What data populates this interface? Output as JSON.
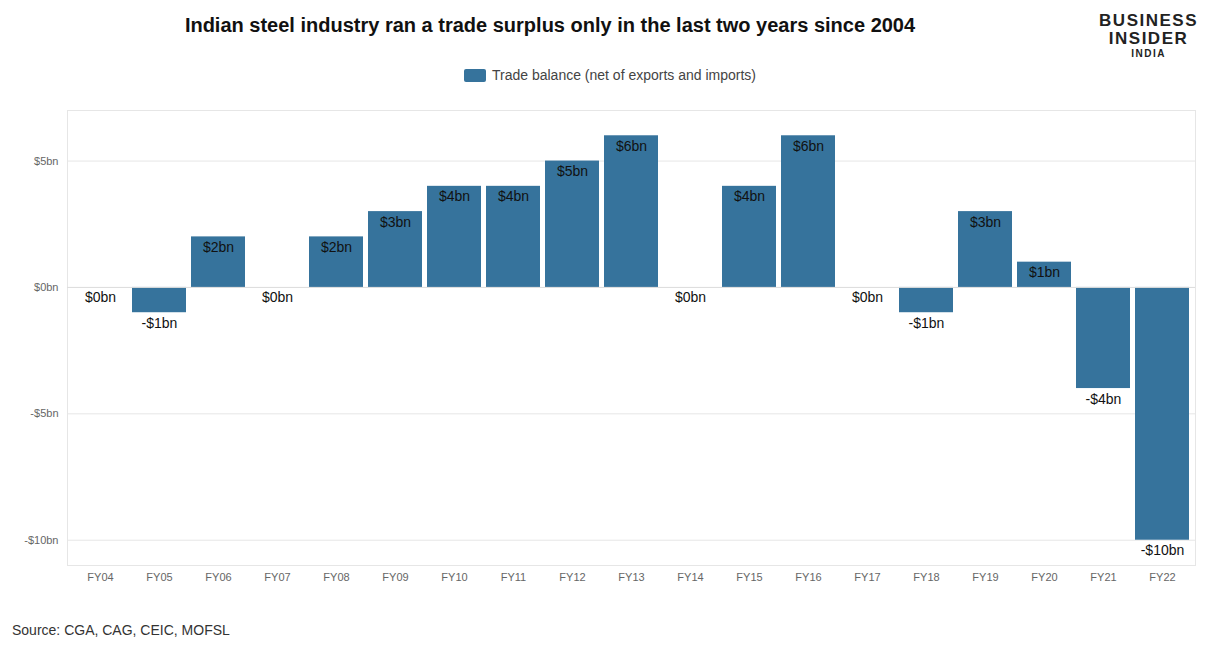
{
  "chart_data": {
    "type": "bar",
    "title": "Indian steel industry ran a trade surplus only in the last two years since 2004",
    "brand": [
      "BUSINESS",
      "INSIDER",
      "INDIA"
    ],
    "source": "Source: CGA, CAG, CEIC, MOFSL",
    "categories": [
      "FY04",
      "FY05",
      "FY06",
      "FY07",
      "FY08",
      "FY09",
      "FY10",
      "FY11",
      "FY12",
      "FY13",
      "FY14",
      "FY15",
      "FY16",
      "FY17",
      "FY18",
      "FY19",
      "FY20",
      "FY21",
      "FY22"
    ],
    "series": [
      {
        "name": "Trade balance (net of exports and imports)",
        "color": "#36739c",
        "values": [
          0,
          -1,
          2,
          0,
          2,
          3,
          4,
          4,
          5,
          6,
          0,
          4,
          6,
          0,
          -1,
          3,
          1,
          -4,
          -10
        ],
        "value_labels": [
          "$0bn",
          "-$1bn",
          "$2bn",
          "$0bn",
          "$2bn",
          "$3bn",
          "$4bn",
          "$4bn",
          "$5bn",
          "$6bn",
          "$0bn",
          "$4bn",
          "$6bn",
          "$0bn",
          "-$1bn",
          "$3bn",
          "$1bn",
          "-$4bn",
          "-$10bn"
        ]
      }
    ],
    "ylim": [
      -11,
      7
    ],
    "yticks": [
      {
        "value": -10,
        "label": "-$10bn"
      },
      {
        "value": -5,
        "label": "-$5bn"
      },
      {
        "value": 0,
        "label": "$0bn"
      },
      {
        "value": 5,
        "label": "$5bn"
      }
    ],
    "grid": true,
    "data_labels": true,
    "legend": "top"
  }
}
